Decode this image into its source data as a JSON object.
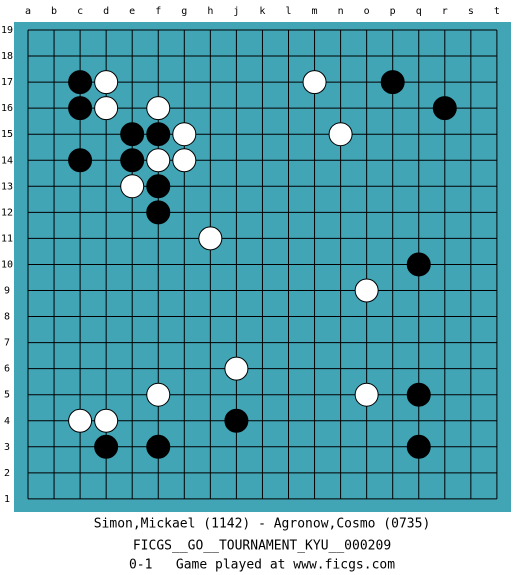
{
  "board": {
    "columns": [
      "a",
      "b",
      "c",
      "d",
      "e",
      "f",
      "g",
      "h",
      "j",
      "k",
      "l",
      "m",
      "n",
      "o",
      "p",
      "q",
      "r",
      "s",
      "t"
    ],
    "rows": [
      "19",
      "18",
      "17",
      "16",
      "15",
      "14",
      "13",
      "12",
      "11",
      "10",
      "9",
      "8",
      "7",
      "6",
      "5",
      "4",
      "3",
      "2",
      "1"
    ],
    "black": [
      "c17",
      "p17",
      "c16",
      "r16",
      "e15",
      "f15",
      "c14",
      "e14",
      "f13",
      "f12",
      "q10",
      "q5",
      "j4",
      "d3",
      "f3",
      "q3"
    ],
    "white": [
      "d17",
      "m17",
      "d16",
      "f16",
      "g15",
      "n15",
      "f14",
      "g14",
      "e13",
      "h11",
      "o9",
      "j6",
      "f5",
      "o5",
      "c4",
      "d4"
    ]
  },
  "footer": {
    "players": "Simon,Mickael (1142) - Agronow,Cosmo (0735)",
    "tournament": "FICGS__GO__TOURNAMENT_KYU__000209",
    "result": "0-1   Game played at www.ficgs.com"
  }
}
